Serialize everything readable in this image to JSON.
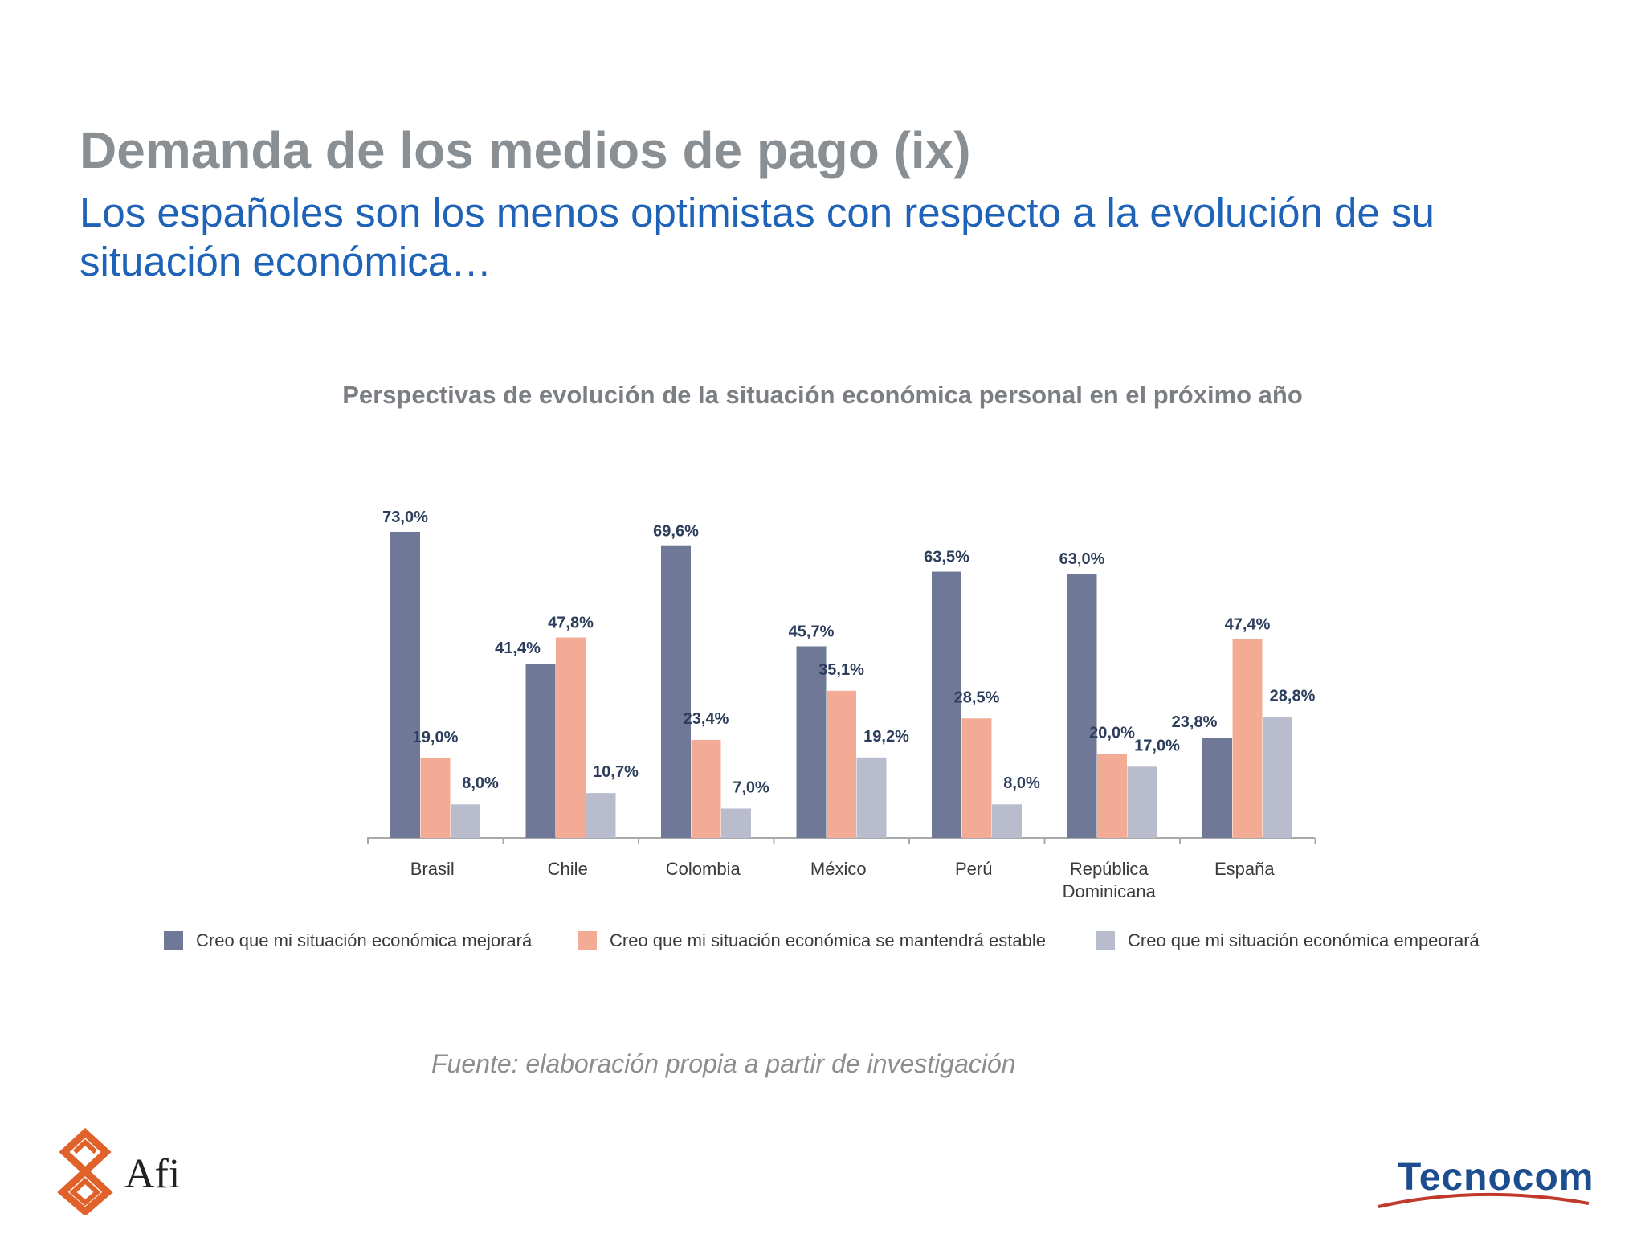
{
  "slide": {
    "title": "Demanda de los medios de pago (ix)",
    "subtitle": "Los españoles son los menos optimistas con respecto a la evolución de su situación económica…",
    "source": "Fuente: elaboración propia a partir de investigación",
    "logos": {
      "left": "Afi",
      "right": "Tecnocom"
    }
  },
  "chart_data": {
    "type": "bar",
    "title": "Perspectivas de evolución de la situación económica personal en el próximo año",
    "categories": [
      [
        "Brasil"
      ],
      [
        "Chile"
      ],
      [
        "Colombia"
      ],
      [
        "México"
      ],
      [
        "Perú"
      ],
      [
        "República",
        "Dominicana"
      ],
      [
        "España"
      ]
    ],
    "series": [
      {
        "name": "Creo que mi situación económica mejorará",
        "color": "#6f7896",
        "values": [
          73.0,
          41.4,
          69.6,
          45.7,
          63.5,
          63.0,
          23.8
        ],
        "labels": [
          "73,0%",
          "41,4%",
          "69,6%",
          "45,7%",
          "63,5%",
          "63,0%",
          "23,8%"
        ]
      },
      {
        "name": "Creo que mi situación económica se mantendrá estable",
        "color": "#f3ab96",
        "values": [
          19.0,
          47.8,
          23.4,
          35.1,
          28.5,
          20.0,
          47.4
        ],
        "labels": [
          "19,0%",
          "47,8%",
          "23,4%",
          "35,1%",
          "28,5%",
          "20,0%",
          "47,4%"
        ]
      },
      {
        "name": "Creo que mi situación económica empeorará",
        "color": "#b9bccd",
        "values": [
          8.0,
          10.7,
          7.0,
          19.2,
          8.0,
          17.0,
          28.8
        ],
        "labels": [
          "8,0%",
          "10,7%",
          "7,0%",
          "19,2%",
          "8,0%",
          "17,0%",
          "28,8%"
        ]
      }
    ],
    "ylim": [
      0,
      73
    ],
    "legend": "bottom",
    "grid": false,
    "label_color": "#2d3e5c",
    "axis_color": "#a9a9a9"
  }
}
